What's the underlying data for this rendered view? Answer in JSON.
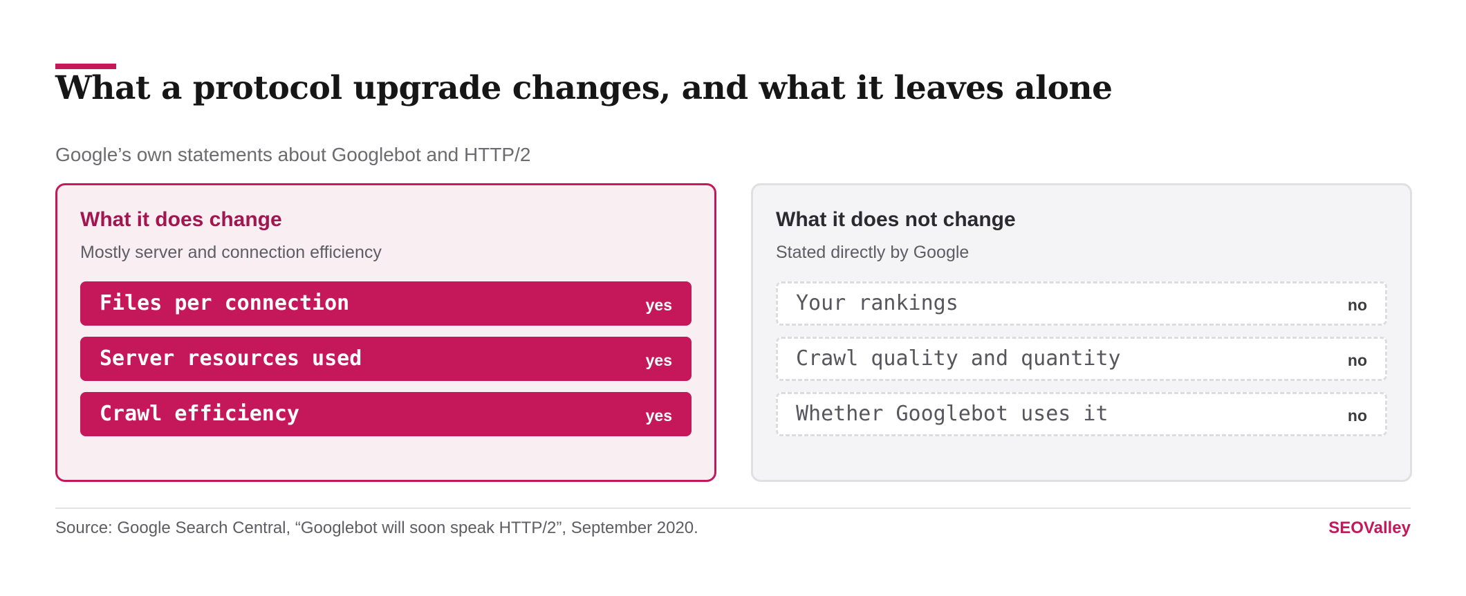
{
  "header": {
    "title": "What a protocol upgrade changes, and what it leaves alone",
    "subtitle": "Google’s own statements about Googlebot and HTTP/2"
  },
  "panels": {
    "changes": {
      "heading": "What it does change",
      "note": "Mostly server and connection efficiency",
      "items": [
        {
          "label": "Files per connection",
          "status": "yes"
        },
        {
          "label": "Server resources used",
          "status": "yes"
        },
        {
          "label": "Crawl efficiency",
          "status": "yes"
        }
      ]
    },
    "unchanged": {
      "heading": "What it does not change",
      "note": "Stated directly by Google",
      "items": [
        {
          "label": "Your rankings",
          "status": "no"
        },
        {
          "label": "Crawl quality and quantity",
          "status": "no"
        },
        {
          "label": "Whether Googlebot uses it",
          "status": "no"
        }
      ]
    }
  },
  "footer": {
    "source": "Source: Google Search Central, “Googlebot will soon speak HTTP/2”, September 2020.",
    "brand": "SEOValley"
  },
  "colors": {
    "accent": "#c4185b",
    "accent_dark": "#a1164e",
    "change_panel_bg": "#f9eef2",
    "neutral_panel_bg": "#f4f3f5",
    "neutral_border": "#e0dfe2",
    "muted_text": "#5d5d63"
  }
}
